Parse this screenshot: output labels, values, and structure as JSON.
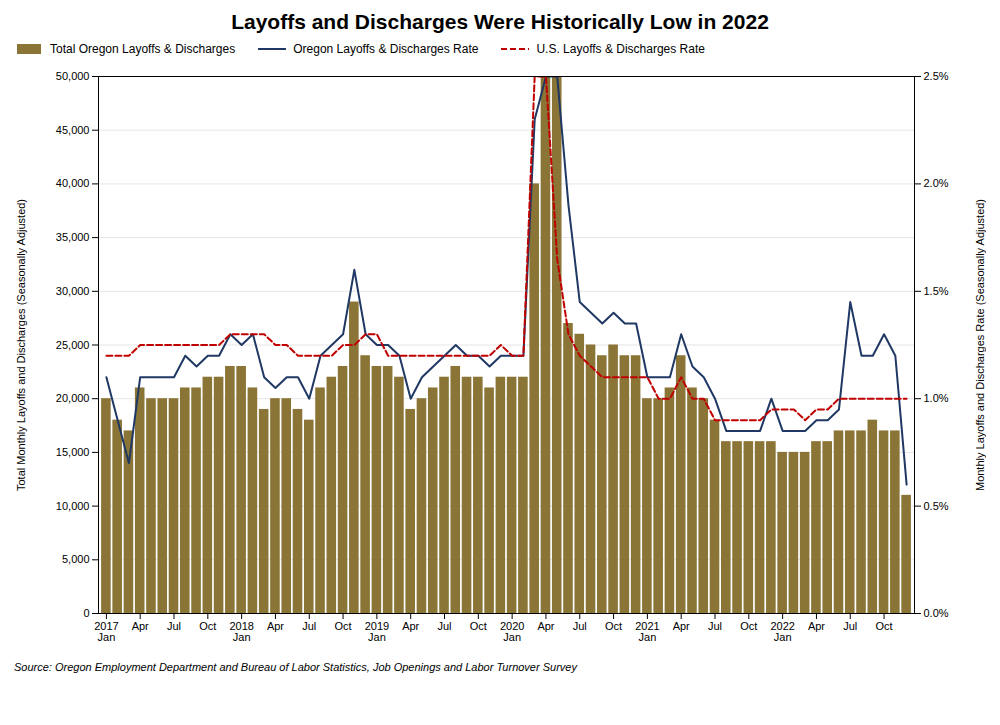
{
  "chart_data": {
    "type": "bar",
    "title": "Layoffs and Discharges Were Historically Low in 2022",
    "source": "Source: Oregon Employment Department and Bureau of Labor Statistics, Job Openings and Labor Turnover Survey",
    "ylabel": "Total Monthly Layoffs and Discharges (Seasonally Adjusted)",
    "y2label": "Monthly Layoffs and Discharges Rate (Seasonally Adjusted)",
    "categories": [
      "2017\nJan",
      null,
      null,
      "Apr",
      null,
      null,
      "Jul",
      null,
      null,
      "Oct",
      null,
      null,
      "2018\nJan",
      null,
      null,
      "Apr",
      null,
      null,
      "Jul",
      null,
      null,
      "Oct",
      null,
      null,
      "2019\nJan",
      null,
      null,
      "Apr",
      null,
      null,
      "Jul",
      null,
      null,
      "Oct",
      null,
      null,
      "2020\nJan",
      null,
      null,
      "Apr",
      null,
      null,
      "Jul",
      null,
      null,
      "Oct",
      null,
      null,
      "2021\nJan",
      null,
      null,
      "Apr",
      null,
      null,
      "Jul",
      null,
      null,
      "Oct",
      null,
      null,
      "2022\nJan",
      null,
      null,
      "Apr",
      null,
      null,
      "Jul",
      null,
      null,
      "Oct",
      null,
      null
    ],
    "series": [
      {
        "name": "Total Oregon Layoffs & Discharges",
        "type": "bar",
        "color": "#8B7536",
        "values": [
          20000,
          18000,
          17000,
          21000,
          20000,
          20000,
          20000,
          21000,
          21000,
          22000,
          22000,
          23000,
          23000,
          21000,
          19000,
          20000,
          20000,
          19000,
          18000,
          21000,
          22000,
          23000,
          29000,
          24000,
          23000,
          23000,
          22000,
          19000,
          20000,
          21000,
          22000,
          23000,
          22000,
          22000,
          21000,
          22000,
          22000,
          22000,
          40000,
          50000,
          50000,
          27000,
          26000,
          25000,
          24000,
          25000,
          24000,
          24000,
          20000,
          20000,
          21000,
          24000,
          21000,
          20000,
          18000,
          16000,
          16000,
          16000,
          16000,
          16000,
          15000,
          15000,
          15000,
          16000,
          16000,
          17000,
          17000,
          17000,
          18000,
          17000,
          17000,
          11000
        ]
      },
      {
        "name": "Oregon Layoffs & Discharges Rate",
        "type": "line",
        "axis": "y2",
        "color": "#1F3864",
        "line_style": "solid",
        "values": [
          1.1,
          0.9,
          0.7,
          1.1,
          1.1,
          1.1,
          1.1,
          1.2,
          1.15,
          1.2,
          1.2,
          1.3,
          1.25,
          1.3,
          1.1,
          1.05,
          1.1,
          1.1,
          1.0,
          1.2,
          1.25,
          1.3,
          1.6,
          1.3,
          1.25,
          1.25,
          1.2,
          1.0,
          1.1,
          1.15,
          1.2,
          1.25,
          1.2,
          1.2,
          1.15,
          1.2,
          1.2,
          1.2,
          2.3,
          2.5,
          2.5,
          1.9,
          1.45,
          1.4,
          1.35,
          1.4,
          1.35,
          1.35,
          1.1,
          1.1,
          1.1,
          1.3,
          1.15,
          1.1,
          1.0,
          0.85,
          0.85,
          0.85,
          0.85,
          1.0,
          0.85,
          0.85,
          0.85,
          0.9,
          0.9,
          0.95,
          1.45,
          1.2,
          1.2,
          1.3,
          1.2,
          0.6
        ]
      },
      {
        "name": "U.S. Layoffs & Discharges Rate",
        "type": "line",
        "axis": "y2",
        "color": "#C00000",
        "line_style": "dashed",
        "values": [
          1.2,
          1.2,
          1.2,
          1.25,
          1.25,
          1.25,
          1.25,
          1.25,
          1.25,
          1.25,
          1.25,
          1.3,
          1.3,
          1.3,
          1.3,
          1.25,
          1.25,
          1.2,
          1.2,
          1.2,
          1.2,
          1.25,
          1.25,
          1.3,
          1.3,
          1.2,
          1.2,
          1.2,
          1.2,
          1.2,
          1.2,
          1.2,
          1.2,
          1.2,
          1.2,
          1.25,
          1.2,
          1.2,
          2.5,
          2.5,
          1.65,
          1.3,
          1.2,
          1.15,
          1.1,
          1.1,
          1.1,
          1.1,
          1.1,
          1.0,
          1.0,
          1.1,
          1.0,
          1.0,
          0.9,
          0.9,
          0.9,
          0.9,
          0.9,
          0.95,
          0.95,
          0.95,
          0.9,
          0.95,
          0.95,
          1.0,
          1.0,
          1.0,
          1.0,
          1.0,
          1.0,
          1.0
        ]
      }
    ],
    "ylim": [
      0,
      50000
    ],
    "yticks": [
      0,
      {
        "value": 5000,
        "label": "5,000"
      },
      {
        "value": 10000,
        "label": "10,000"
      },
      {
        "value": 15000,
        "label": "15,000"
      },
      {
        "value": 20000,
        "label": "20,000"
      },
      {
        "value": 25000,
        "label": "25,000"
      },
      {
        "value": 30000,
        "label": "30,000"
      },
      {
        "value": 35000,
        "label": "35,000"
      },
      {
        "value": 40000,
        "label": "40,000"
      },
      {
        "value": 45000,
        "label": "45,000"
      },
      {
        "value": 50000,
        "label": "50,000"
      }
    ],
    "y2lim": [
      0.0,
      2.5
    ],
    "y2ticks": [
      {
        "value": 0.0,
        "label": "0.0%"
      },
      {
        "value": 0.5,
        "label": "0.5%"
      },
      {
        "value": 1.0,
        "label": "1.0%"
      },
      {
        "value": 1.5,
        "label": "1.5%"
      },
      {
        "value": 2.0,
        "label": "2.0%"
      },
      {
        "value": 2.5,
        "label": "2.5%"
      }
    ],
    "grid": true,
    "legend": "upper left"
  }
}
